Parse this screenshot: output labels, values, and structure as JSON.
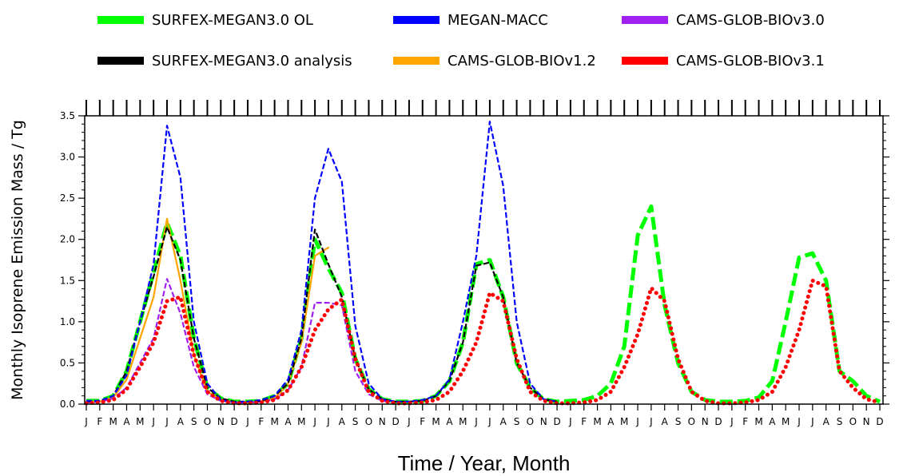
{
  "chart_data": {
    "type": "line",
    "title": "",
    "xlabel": "Time / Year, Month",
    "ylabel": "Monthly Isoprene Emission Mass / Tg",
    "ylim": [
      0,
      3.5
    ],
    "yticks": [
      "0.0",
      "0.5",
      "1.0",
      "1.5",
      "2.0",
      "2.5",
      "3.0",
      "3.5"
    ],
    "x_month_labels": [
      "J",
      "F",
      "M",
      "A",
      "M",
      "J",
      "J",
      "A",
      "S",
      "O",
      "N",
      "D",
      "J",
      "F",
      "M",
      "A",
      "M",
      "J",
      "J",
      "A",
      "S",
      "O",
      "N",
      "D",
      "J",
      "F",
      "M",
      "A",
      "M",
      "J",
      "J",
      "A",
      "S",
      "O",
      "N",
      "D",
      "J",
      "F",
      "M",
      "A",
      "M",
      "J",
      "J",
      "A",
      "S",
      "O",
      "N",
      "D",
      "J",
      "F",
      "M",
      "A",
      "M",
      "J",
      "J",
      "A",
      "S",
      "O",
      "N",
      "D"
    ],
    "legend_position": "top",
    "grid": false,
    "series": [
      {
        "name": "SURFEX-MEGAN3.0 OL",
        "color": "#00ff00",
        "style": "long-dash",
        "values": [
          0.04,
          0.04,
          0.1,
          0.4,
          1.0,
          1.6,
          2.2,
          1.8,
          0.8,
          0.2,
          0.07,
          0.03,
          0.03,
          0.04,
          0.1,
          0.25,
          0.8,
          2.0,
          1.65,
          1.35,
          0.55,
          0.18,
          0.06,
          0.03,
          0.03,
          0.04,
          0.1,
          0.28,
          0.75,
          1.7,
          1.75,
          1.3,
          0.5,
          0.2,
          0.06,
          0.03,
          0.04,
          0.05,
          0.1,
          0.25,
          0.7,
          2.05,
          2.4,
          1.2,
          0.5,
          0.15,
          0.05,
          0.03,
          0.03,
          0.04,
          0.08,
          0.28,
          1.0,
          1.78,
          1.83,
          1.5,
          0.4,
          0.28,
          0.1,
          0.03
        ]
      },
      {
        "name": "SURFEX-MEGAN3.0 analysis",
        "color": "#000000",
        "style": "dash",
        "values": [
          0.03,
          0.04,
          0.1,
          0.4,
          1.0,
          1.55,
          2.15,
          1.75,
          0.8,
          0.2,
          0.07,
          0.03,
          0.03,
          0.04,
          0.1,
          0.25,
          0.8,
          2.12,
          1.7,
          1.3,
          0.55,
          0.18,
          0.06,
          0.03,
          0.03,
          0.04,
          0.1,
          0.28,
          0.75,
          1.68,
          1.72,
          1.3,
          0.5,
          0.2,
          0.06,
          0.03,
          null,
          null,
          null,
          null,
          null,
          null,
          null,
          null,
          null,
          null,
          null,
          null,
          null,
          null,
          null,
          null,
          null,
          null,
          null,
          null,
          null,
          null,
          null,
          null
        ]
      },
      {
        "name": "MEGAN-MACC",
        "color": "#0000ff",
        "style": "dash",
        "values": [
          0.04,
          0.04,
          0.1,
          0.35,
          1.0,
          1.7,
          3.38,
          2.75,
          1.0,
          0.25,
          0.05,
          0.02,
          0.03,
          0.05,
          0.1,
          0.3,
          0.9,
          2.5,
          3.1,
          2.7,
          0.95,
          0.25,
          0.06,
          0.03,
          0.03,
          0.05,
          0.1,
          0.3,
          1.0,
          1.8,
          3.43,
          2.65,
          1.0,
          0.25,
          0.06,
          0.03,
          null,
          null,
          null,
          null,
          null,
          null,
          null,
          null,
          null,
          null,
          null,
          null,
          null,
          null,
          null,
          null,
          null,
          null,
          null,
          null,
          null,
          null,
          null,
          null
        ]
      },
      {
        "name": "CAMS-GLOB-BIOv1.2",
        "color": "#ffa500",
        "style": "solid",
        "values": [
          0.03,
          0.03,
          0.08,
          0.3,
          0.8,
          1.3,
          2.25,
          1.5,
          0.6,
          0.15,
          0.05,
          0.02,
          0.02,
          0.03,
          0.07,
          0.25,
          0.75,
          1.8,
          1.9,
          null,
          null,
          null,
          null,
          null,
          null,
          null,
          null,
          null,
          null,
          null,
          null,
          null,
          null,
          null,
          null,
          null,
          null,
          null,
          null,
          null,
          null,
          null,
          null,
          null,
          null,
          null,
          null,
          null,
          null,
          null,
          null,
          null,
          null,
          null,
          null,
          null,
          null,
          null,
          null,
          null
        ]
      },
      {
        "name": "CAMS-GLOB-BIOv3.0",
        "color": "#a020f0",
        "style": "dash",
        "values": [
          0.02,
          0.03,
          0.07,
          0.2,
          0.5,
          0.8,
          1.52,
          1.1,
          0.45,
          0.12,
          0.04,
          0.02,
          0.02,
          0.03,
          0.06,
          0.17,
          0.45,
          1.23,
          1.23,
          1.2,
          0.4,
          0.12,
          0.04,
          0.02,
          null,
          null,
          null,
          null,
          null,
          null,
          null,
          null,
          null,
          null,
          null,
          null,
          null,
          null,
          null,
          null,
          null,
          null,
          null,
          null,
          null,
          null,
          null,
          null,
          null,
          null,
          null,
          null,
          null,
          null,
          null,
          null,
          null,
          null,
          null,
          null
        ]
      },
      {
        "name": "CAMS-GLOB-BIOv3.1",
        "color": "#ff0000",
        "style": "dot",
        "values": [
          0.01,
          0.02,
          0.05,
          0.18,
          0.45,
          0.75,
          1.25,
          1.3,
          0.6,
          0.15,
          0.04,
          0.01,
          0.01,
          0.02,
          0.05,
          0.17,
          0.45,
          0.9,
          1.15,
          1.27,
          0.55,
          0.15,
          0.04,
          0.01,
          0.01,
          0.02,
          0.05,
          0.15,
          0.4,
          0.75,
          1.35,
          1.25,
          0.55,
          0.15,
          0.04,
          0.01,
          0.01,
          0.02,
          0.05,
          0.15,
          0.45,
          0.85,
          1.41,
          1.25,
          0.55,
          0.15,
          0.04,
          0.01,
          0.01,
          0.02,
          0.05,
          0.15,
          0.45,
          0.9,
          1.5,
          1.43,
          0.4,
          0.2,
          0.06,
          0.02
        ]
      }
    ],
    "legend_layout": [
      [
        "SURFEX-MEGAN3.0 OL",
        "MEGAN-MACC",
        "CAMS-GLOB-BIOv3.0"
      ],
      [
        "SURFEX-MEGAN3.0 analysis",
        "CAMS-GLOB-BIOv1.2",
        "CAMS-GLOB-BIOv3.1"
      ]
    ]
  }
}
